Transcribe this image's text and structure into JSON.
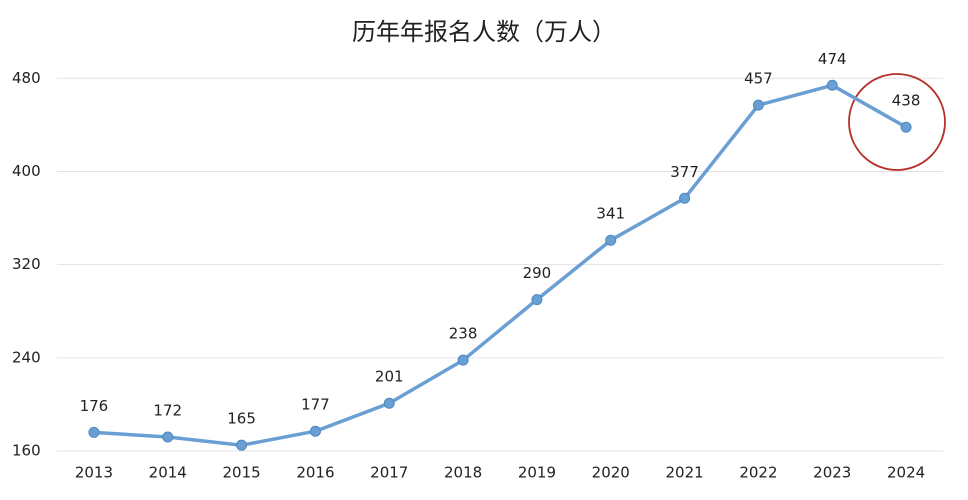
{
  "chart_data": {
    "type": "line",
    "title": "历年年报名人数（万人）",
    "categories": [
      "2013",
      "2014",
      "2015",
      "2016",
      "2017",
      "2018",
      "2019",
      "2020",
      "2021",
      "2022",
      "2023",
      "2024"
    ],
    "values": [
      176,
      172,
      165,
      177,
      201,
      238,
      290,
      341,
      377,
      457,
      474,
      438
    ],
    "color": "#6a9fd4",
    "ylim": [
      160,
      500
    ],
    "yticks": [
      160,
      240,
      320,
      400,
      480
    ],
    "grid": true
  }
}
